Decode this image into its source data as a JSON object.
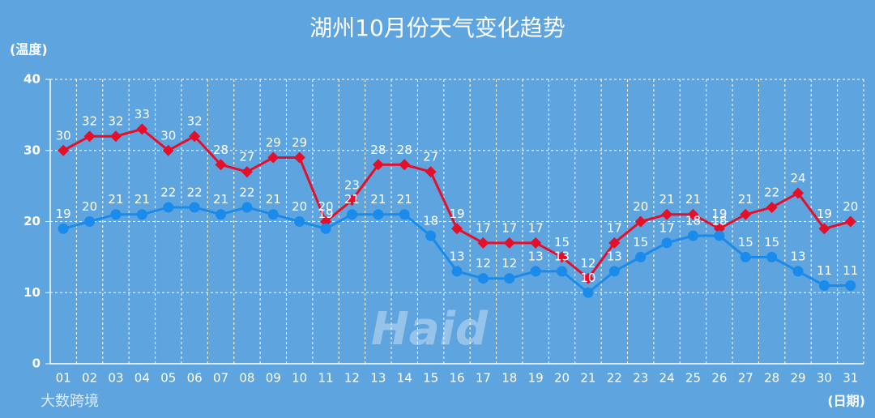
{
  "chart_data": {
    "type": "line",
    "title": "湖州10月份天气变化趋势",
    "y_label": "(温度)",
    "x_label": "(日期)",
    "watermark": "Haid",
    "source": "大数跨境",
    "categories": [
      "01",
      "02",
      "03",
      "04",
      "05",
      "06",
      "07",
      "08",
      "09",
      "10",
      "11",
      "12",
      "13",
      "14",
      "15",
      "16",
      "17",
      "18",
      "19",
      "20",
      "21",
      "22",
      "23",
      "24",
      "25",
      "26",
      "27",
      "28",
      "29",
      "30",
      "31"
    ],
    "series": [
      {
        "color": "#e60f2a",
        "marker": "diamond",
        "values": [
          30,
          32,
          32,
          33,
          30,
          32,
          28,
          27,
          29,
          29,
          20,
          23,
          28,
          28,
          27,
          19,
          17,
          17,
          17,
          15,
          12,
          17,
          20,
          21,
          21,
          19,
          21,
          22,
          24,
          19,
          20
        ]
      },
      {
        "color": "#1a8bea",
        "marker": "circle",
        "values": [
          19,
          20,
          21,
          21,
          22,
          22,
          21,
          22,
          21,
          20,
          19,
          21,
          21,
          21,
          18,
          13,
          12,
          12,
          13,
          13,
          10,
          13,
          15,
          17,
          18,
          18,
          15,
          15,
          13,
          11,
          11
        ]
      }
    ],
    "ylim": [
      0,
      40
    ],
    "yticks": [
      0,
      10,
      20,
      30,
      40
    ],
    "grid": true
  }
}
